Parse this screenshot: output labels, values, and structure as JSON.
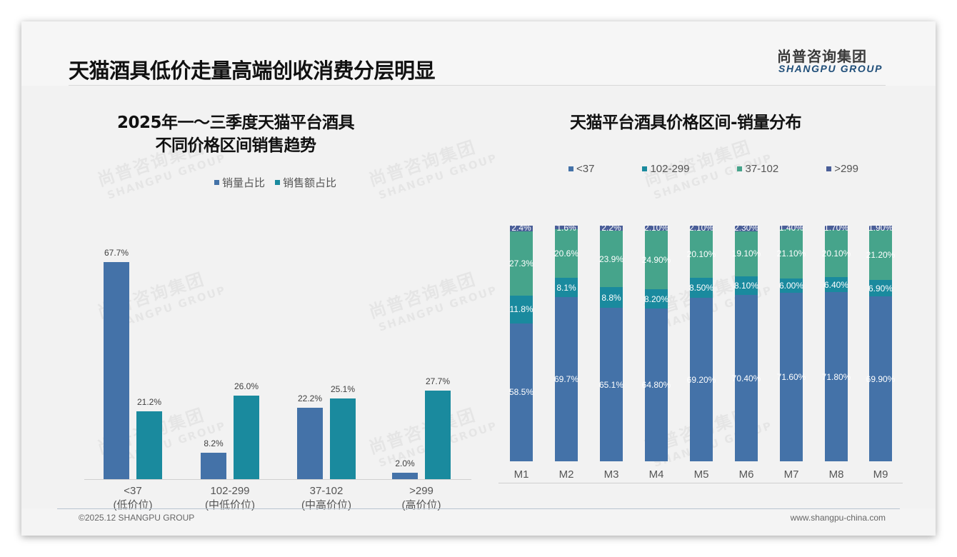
{
  "header": {
    "title": "天猫酒具低价走量高端创收消费分层明显",
    "logo_cn": "尚普咨询集团",
    "logo_en": "SHANGPU GROUP"
  },
  "watermark": {
    "cn": "尚普咨询集团",
    "en": "SHANGPU GROUP"
  },
  "colors": {
    "blue": "#4472a8",
    "teal": "#1a8a9e",
    "green": "#46a48b",
    "navy": "#4a5e98",
    "text": "#111111"
  },
  "left_chart": {
    "title_line1": "2025年一～三季度天猫平台酒具",
    "title_line2": "不同价格区间销售趋势",
    "legend": [
      "销量占比",
      "销售额占比"
    ],
    "categories": [
      {
        "range": "<37",
        "tier": "(低价位)"
      },
      {
        "range": "102-299",
        "tier": "(中低价位)"
      },
      {
        "range": "37-102",
        "tier": "(中高价位)"
      },
      {
        "range": ">299",
        "tier": "(高价位)"
      }
    ],
    "labels": {
      "volume": [
        "67.7%",
        "8.2%",
        "22.2%",
        "2.0%"
      ],
      "revenue": [
        "21.2%",
        "26.0%",
        "25.1%",
        "27.7%"
      ]
    }
  },
  "right_chart": {
    "title": "天猫平台酒具价格区间-销量分布",
    "legend": [
      "<37",
      "102-299",
      "37-102",
      ">299"
    ],
    "months": [
      "M1",
      "M2",
      "M3",
      "M4",
      "M5",
      "M6",
      "M7",
      "M8",
      "M9"
    ],
    "labels": [
      [
        "58.5%",
        "11.8%",
        "27.3%",
        "2.4%"
      ],
      [
        "69.7%",
        "8.1%",
        "20.6%",
        "1.6%"
      ],
      [
        "65.1%",
        "8.8%",
        "23.9%",
        "2.2%"
      ],
      [
        "64.80%",
        "8.20%",
        "24.90%",
        "2.10%"
      ],
      [
        "69.20%",
        "8.50%",
        "20.10%",
        "2.10%"
      ],
      [
        "70.40%",
        "8.10%",
        "19.10%",
        "2.30%"
      ],
      [
        "71.60%",
        "6.00%",
        "21.10%",
        "1.40%"
      ],
      [
        "71.80%",
        "6.40%",
        "20.10%",
        "1.70%"
      ],
      [
        "69.90%",
        "6.90%",
        "21.20%",
        "1.90%"
      ]
    ]
  },
  "footer": {
    "left": "©2025.12 SHANGPU GROUP",
    "right": "www.shangpu-china.com"
  },
  "chart_data": [
    {
      "type": "bar",
      "title": "2025年一～三季度天猫平台酒具不同价格区间销售趋势",
      "categories": [
        "<37 (低价位)",
        "102-299 (中低价位)",
        "37-102 (中高价位)",
        ">299 (高价位)"
      ],
      "series": [
        {
          "name": "销量占比",
          "values": [
            67.7,
            8.2,
            22.2,
            2.0
          ]
        },
        {
          "name": "销售额占比",
          "values": [
            21.2,
            26.0,
            25.1,
            27.7
          ]
        }
      ],
      "xlabel": "",
      "ylabel": "",
      "unit": "%",
      "ylim": [
        0,
        70
      ],
      "grid": false,
      "legend_position": "top"
    },
    {
      "type": "bar",
      "stacked": true,
      "title": "天猫平台酒具价格区间-销量分布",
      "categories": [
        "M1",
        "M2",
        "M3",
        "M4",
        "M5",
        "M6",
        "M7",
        "M8",
        "M9"
      ],
      "series": [
        {
          "name": "<37",
          "values": [
            58.5,
            69.7,
            65.1,
            64.8,
            69.2,
            70.4,
            71.6,
            71.8,
            69.9
          ]
        },
        {
          "name": "102-299",
          "values": [
            11.8,
            8.1,
            8.8,
            8.2,
            8.5,
            8.1,
            6.0,
            6.4,
            6.9
          ]
        },
        {
          "name": "37-102",
          "values": [
            27.3,
            20.6,
            23.9,
            24.9,
            20.1,
            19.1,
            21.1,
            20.1,
            21.2
          ]
        },
        {
          "name": ">299",
          "values": [
            2.4,
            1.6,
            2.2,
            2.1,
            2.1,
            2.3,
            1.4,
            1.7,
            1.9
          ]
        }
      ],
      "xlabel": "",
      "ylabel": "",
      "unit": "%",
      "ylim": [
        0,
        100
      ],
      "grid": false,
      "legend_position": "top"
    }
  ]
}
